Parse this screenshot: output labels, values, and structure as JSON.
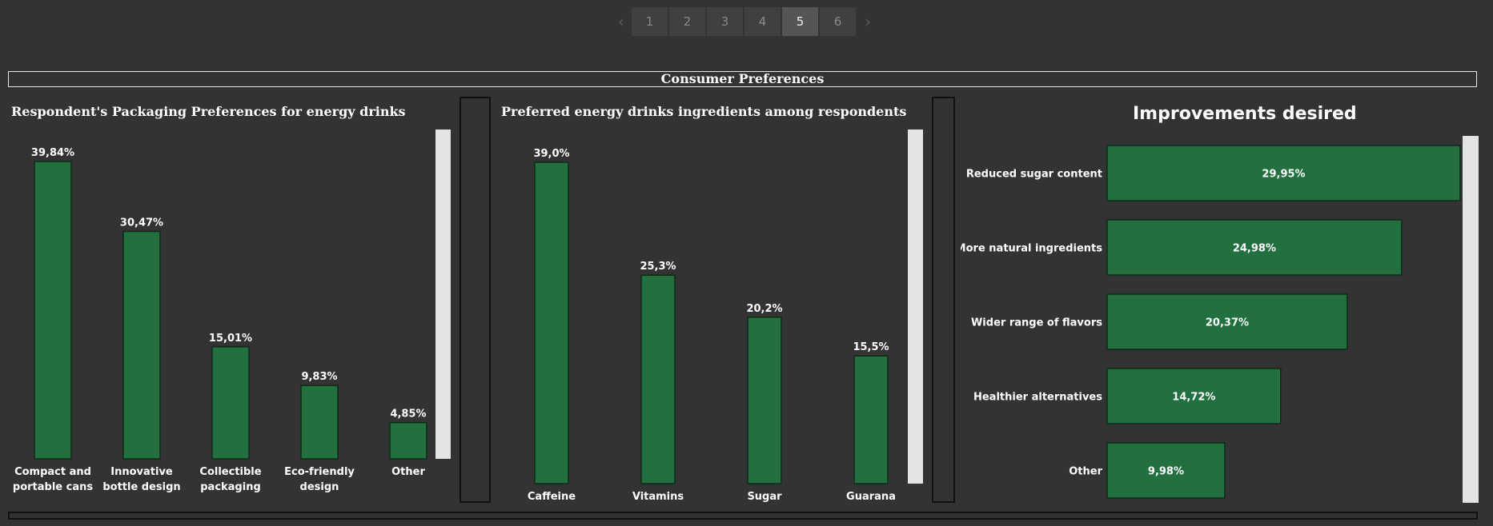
{
  "pager": {
    "pages": [
      "1",
      "2",
      "3",
      "4",
      "5",
      "6"
    ],
    "active": "5",
    "prev_icon": "‹",
    "next_icon": "›"
  },
  "dashboard": {
    "title": "Consumer Preferences"
  },
  "colors": {
    "background": "#333333",
    "bar_fill": "#22703f",
    "bar_stroke": "#0f2a18",
    "text": "#ffffff"
  },
  "chart_data": [
    {
      "type": "bar",
      "title": "Respondent's Packaging Preferences for energy drinks",
      "categories": [
        [
          "Compact and",
          "portable cans"
        ],
        [
          "Innovative",
          "bottle design"
        ],
        [
          "Collectible",
          "packaging"
        ],
        [
          "Eco-friendly",
          "design"
        ],
        [
          "Other"
        ]
      ],
      "values": [
        39.84,
        30.47,
        15.01,
        9.83,
        4.85
      ],
      "labels": [
        "39,84%",
        "30,47%",
        "15,01%",
        "9,83%",
        "4,85%"
      ],
      "ylim": [
        0,
        39.84
      ]
    },
    {
      "type": "bar",
      "title": "Preferred energy drinks ingredients  among respondents",
      "categories": [
        [
          "Caffeine"
        ],
        [
          "Vitamins"
        ],
        [
          "Sugar"
        ],
        [
          "Guarana"
        ]
      ],
      "values": [
        39.0,
        25.3,
        20.2,
        15.5
      ],
      "labels": [
        "39,0%",
        "25,3%",
        "20,2%",
        "15,5%"
      ],
      "ylim": [
        0,
        39.0
      ]
    },
    {
      "type": "bar",
      "orientation": "horizontal",
      "title": "Improvements desired",
      "categories": [
        "Reduced sugar content",
        "More natural ingredients",
        "Wider range of flavors",
        "Healthier alternatives",
        "Other"
      ],
      "values": [
        29.95,
        24.98,
        20.37,
        14.72,
        9.98
      ],
      "labels": [
        "29,95%",
        "24,98%",
        "20,37%",
        "14,72%",
        "9,98%"
      ],
      "xlim": [
        0,
        29.95
      ]
    }
  ]
}
